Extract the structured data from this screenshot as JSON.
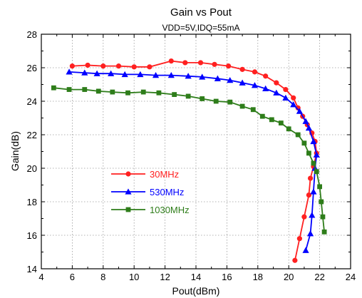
{
  "chart_data": {
    "type": "line",
    "title": "Gain vs Pout",
    "subtitle": "VDD=5V,IDQ=55mA",
    "xlabel": "Pout(dBm)",
    "ylabel": "Gain(dB)",
    "xlim": [
      4,
      24
    ],
    "ylim": [
      14,
      28
    ],
    "xticks": [
      "4",
      "6",
      "8",
      "10",
      "12",
      "14",
      "16",
      "18",
      "20",
      "22",
      "24"
    ],
    "yticks": [
      "14",
      "16",
      "18",
      "20",
      "22",
      "24",
      "26",
      "28"
    ],
    "grid": true,
    "legend_position": "lower-left",
    "series": [
      {
        "name": "30MHz",
        "color": "#ff2020",
        "marker": "circle",
        "points": [
          [
            6.0,
            26.1
          ],
          [
            7.0,
            26.15
          ],
          [
            8.0,
            26.1
          ],
          [
            9.0,
            26.1
          ],
          [
            10.0,
            26.05
          ],
          [
            11.0,
            26.05
          ],
          [
            12.4,
            26.4
          ],
          [
            13.3,
            26.3
          ],
          [
            14.3,
            26.3
          ],
          [
            15.2,
            26.2
          ],
          [
            16.1,
            26.1
          ],
          [
            17.0,
            25.9
          ],
          [
            17.8,
            25.75
          ],
          [
            18.5,
            25.5
          ],
          [
            19.2,
            25.1
          ],
          [
            19.8,
            24.7
          ],
          [
            20.3,
            24.2
          ],
          [
            20.6,
            23.6
          ],
          [
            20.9,
            23.1
          ],
          [
            21.2,
            22.6
          ],
          [
            21.5,
            22.1
          ],
          [
            21.7,
            21.6
          ],
          [
            21.8,
            20.9
          ],
          [
            21.6,
            20.1
          ],
          [
            21.4,
            19.4
          ],
          [
            21.3,
            18.4
          ],
          [
            21.0,
            17.1
          ],
          [
            20.7,
            15.8
          ],
          [
            20.4,
            14.5
          ]
        ]
      },
      {
        "name": "530MHz",
        "color": "#0000ff",
        "marker": "triangle",
        "points": [
          [
            5.8,
            25.75
          ],
          [
            6.8,
            25.7
          ],
          [
            7.6,
            25.65
          ],
          [
            8.5,
            25.65
          ],
          [
            9.4,
            25.6
          ],
          [
            10.4,
            25.6
          ],
          [
            11.4,
            25.55
          ],
          [
            12.4,
            25.55
          ],
          [
            13.5,
            25.5
          ],
          [
            14.4,
            25.45
          ],
          [
            15.4,
            25.35
          ],
          [
            16.2,
            25.25
          ],
          [
            17.0,
            25.1
          ],
          [
            17.8,
            24.95
          ],
          [
            18.5,
            24.75
          ],
          [
            19.2,
            24.5
          ],
          [
            19.8,
            24.2
          ],
          [
            20.3,
            23.8
          ],
          [
            20.7,
            23.4
          ],
          [
            21.1,
            22.8
          ],
          [
            21.3,
            22.4
          ],
          [
            21.6,
            21.6
          ],
          [
            21.8,
            20.8
          ],
          [
            21.7,
            20.0
          ],
          [
            21.6,
            18.6
          ],
          [
            21.5,
            17.2
          ],
          [
            21.4,
            16.1
          ],
          [
            21.1,
            15.1
          ]
        ]
      },
      {
        "name": "1030MHz",
        "color": "#2e7d1a",
        "marker": "square",
        "points": [
          [
            4.8,
            24.8
          ],
          [
            5.8,
            24.7
          ],
          [
            6.8,
            24.7
          ],
          [
            7.7,
            24.6
          ],
          [
            8.6,
            24.55
          ],
          [
            9.6,
            24.5
          ],
          [
            10.6,
            24.55
          ],
          [
            11.6,
            24.5
          ],
          [
            12.6,
            24.4
          ],
          [
            13.5,
            24.3
          ],
          [
            14.4,
            24.15
          ],
          [
            15.3,
            24.0
          ],
          [
            16.2,
            23.95
          ],
          [
            17.0,
            23.7
          ],
          [
            17.7,
            23.5
          ],
          [
            18.3,
            23.1
          ],
          [
            18.9,
            22.9
          ],
          [
            19.5,
            22.7
          ],
          [
            20.0,
            22.35
          ],
          [
            20.6,
            22.0
          ],
          [
            21.0,
            21.5
          ],
          [
            21.3,
            20.9
          ],
          [
            21.6,
            20.3
          ],
          [
            21.8,
            19.8
          ],
          [
            22.0,
            18.9
          ],
          [
            22.1,
            18.0
          ],
          [
            22.2,
            17.1
          ],
          [
            22.3,
            16.2
          ]
        ]
      }
    ]
  }
}
